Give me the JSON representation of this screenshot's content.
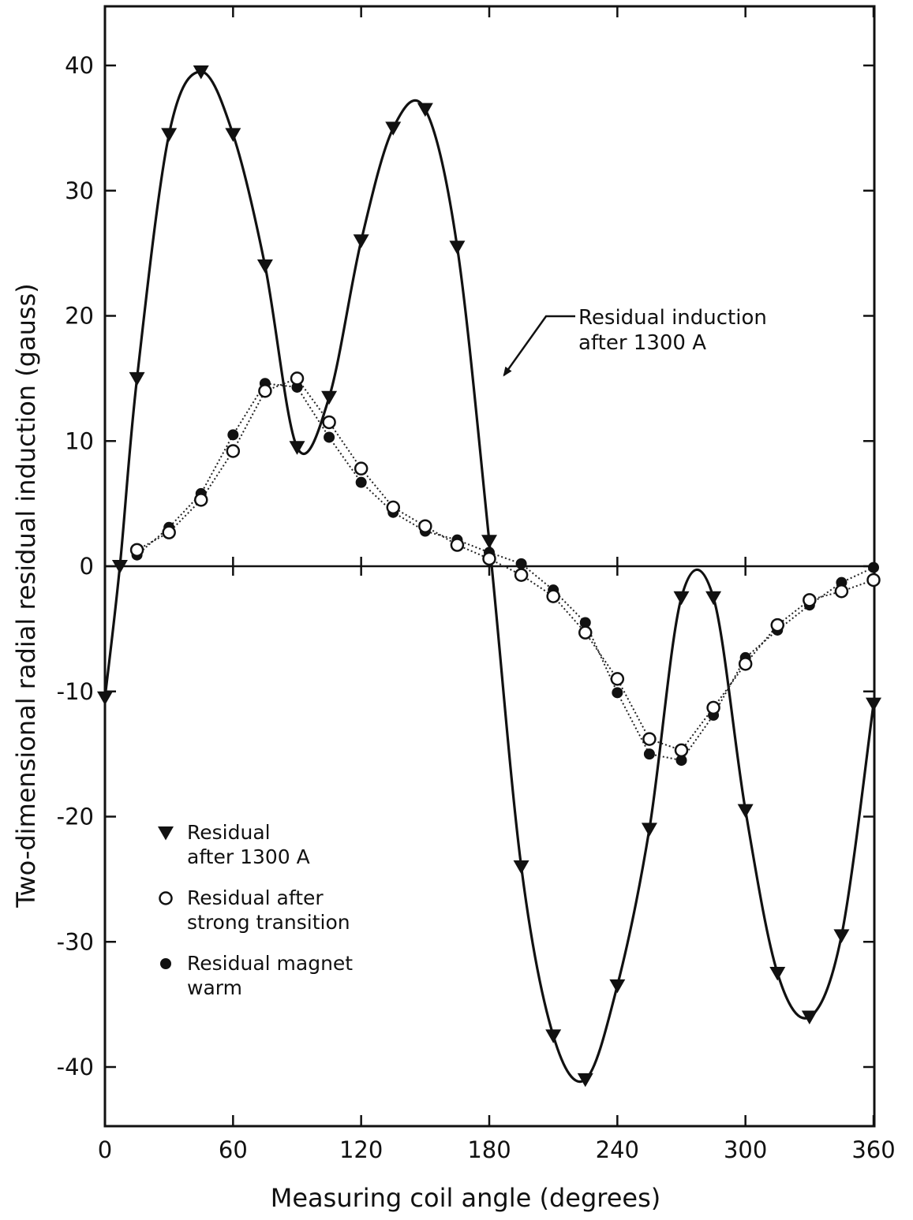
{
  "chart_data": {
    "type": "scatter",
    "xlabel": "Measuring coil angle (degrees)",
    "ylabel": "Two-dimensional radial residual induction (gauss)",
    "xlim": [
      0,
      360
    ],
    "ylim": [
      -45,
      45
    ],
    "xticks": [
      0,
      60,
      120,
      180,
      240,
      300,
      360
    ],
    "xtick_labels": [
      "0",
      "60",
      "120",
      "180",
      "240",
      "300",
      "360"
    ],
    "yticks": [
      40,
      30,
      20,
      10,
      0,
      -10,
      -20,
      -30,
      -40
    ],
    "ytick_labels": [
      "40",
      "30",
      "20",
      "10",
      "0",
      "-10",
      "-20",
      "-30",
      "-40"
    ],
    "grid": false,
    "legend_position": "lower-left",
    "series": [
      {
        "name": "Residual after 1300 A",
        "legend_lines": [
          "Residual",
          "after 1300 A"
        ],
        "marker": "triangle-down",
        "line": "solid",
        "x": [
          0,
          7,
          15,
          30,
          45,
          60,
          75,
          90,
          105,
          120,
          135,
          150,
          165,
          180,
          195,
          210,
          225,
          240,
          255,
          270,
          285,
          300,
          315,
          330,
          345,
          360
        ],
        "y": [
          -10.5,
          0,
          15,
          34.5,
          39.5,
          34.5,
          24,
          9.5,
          13.5,
          26,
          35,
          36.5,
          25.5,
          2,
          -24,
          -37.5,
          -41,
          -33.5,
          -21,
          -2.5,
          -2.5,
          -19.5,
          -32.5,
          -36,
          -29.5,
          -11
        ]
      },
      {
        "name": "Residual after strong transition",
        "legend_lines": [
          "Residual after",
          "strong transition"
        ],
        "marker": "open-circle",
        "line": "dotted",
        "x": [
          15,
          30,
          45,
          60,
          75,
          90,
          105,
          120,
          135,
          150,
          165,
          180,
          195,
          210,
          225,
          240,
          255,
          270,
          285,
          300,
          315,
          330,
          345,
          360
        ],
        "y": [
          1.3,
          2.7,
          5.3,
          9.2,
          14,
          15,
          11.5,
          7.8,
          4.7,
          3.2,
          1.7,
          0.6,
          -0.7,
          -2.4,
          -5.3,
          -9,
          -13.8,
          -14.7,
          -11.3,
          -7.8,
          -4.7,
          -2.7,
          -2,
          -1.1
        ]
      },
      {
        "name": "Residual magnet warm",
        "legend_lines": [
          "Residual magnet",
          "warm"
        ],
        "marker": "filled-circle",
        "line": "dotted",
        "x": [
          15,
          30,
          45,
          60,
          75,
          90,
          105,
          120,
          135,
          150,
          165,
          180,
          195,
          210,
          225,
          240,
          255,
          270,
          285,
          300,
          315,
          330,
          345,
          360
        ],
        "y": [
          0.9,
          3.1,
          5.8,
          10.5,
          14.6,
          14.3,
          10.3,
          6.7,
          4.3,
          2.8,
          2.1,
          1.1,
          0.2,
          -1.9,
          -4.5,
          -10.1,
          -15,
          -15.5,
          -11.9,
          -7.3,
          -5.1,
          -3.1,
          -1.3,
          -0.1
        ]
      }
    ],
    "annotations": [
      {
        "lines": [
          "Residual induction",
          "after 1300 A"
        ],
        "points_to_x": 181,
        "points_to_y": 14.5
      }
    ]
  }
}
